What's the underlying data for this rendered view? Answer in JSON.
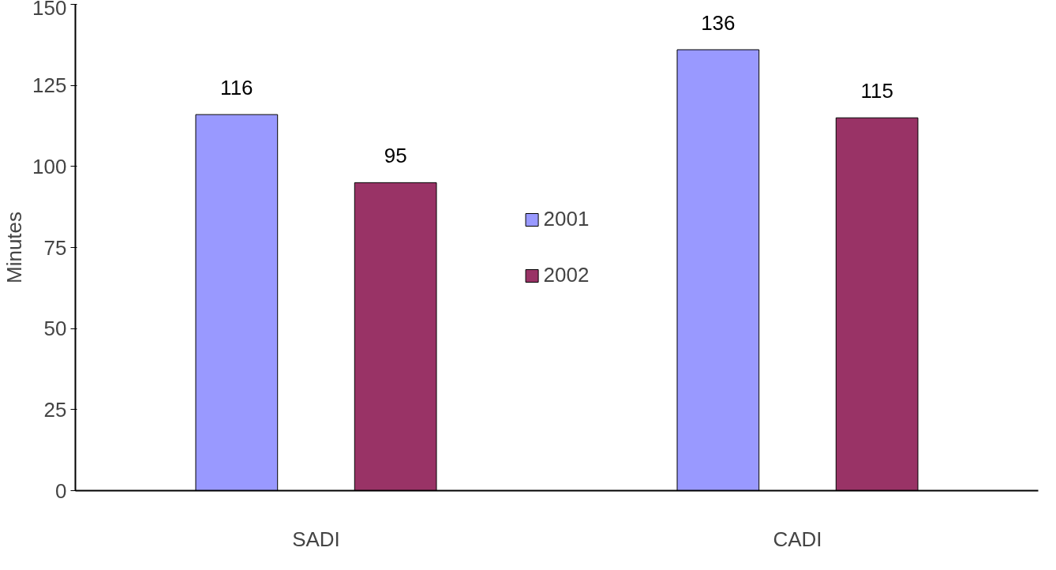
{
  "chart_data": {
    "type": "bar",
    "ylabel": "Minutes",
    "categories": [
      "SADI",
      "CADI"
    ],
    "series": [
      {
        "name": "2001",
        "color": "#9999ff",
        "values": [
          116,
          136
        ]
      },
      {
        "name": "2002",
        "color": "#993366",
        "values": [
          95,
          115
        ]
      }
    ],
    "ylim": [
      0,
      150
    ],
    "yticks": [
      0,
      25,
      50,
      75,
      100,
      125,
      150
    ],
    "grid": false,
    "legend": "center",
    "data_labels": true
  }
}
